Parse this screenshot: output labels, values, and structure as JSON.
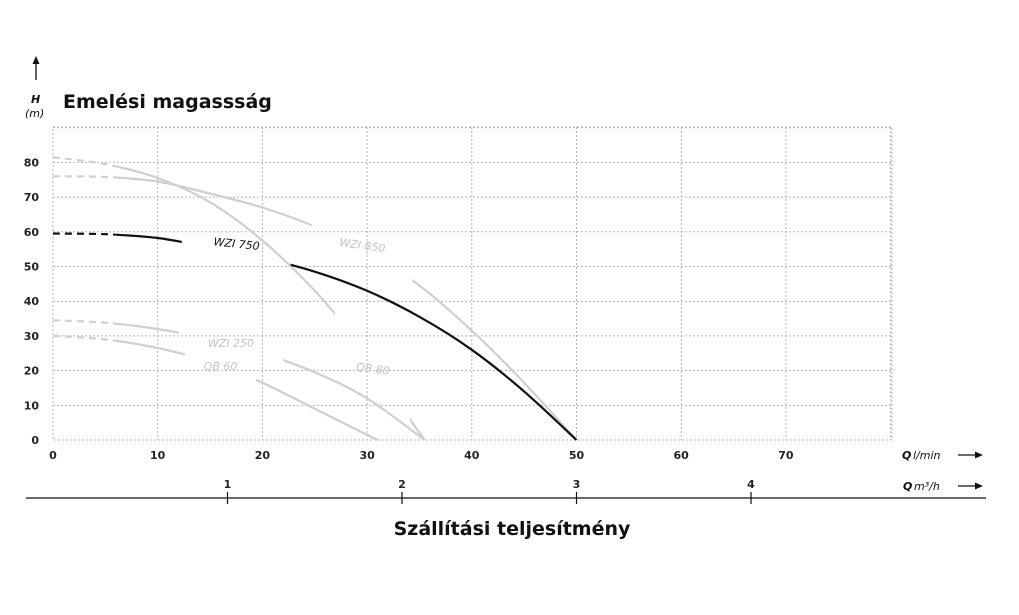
{
  "chart_data": {
    "type": "line",
    "title": "Emelési magassság",
    "xlabel": "Szállítási teljesítmény",
    "y_axis": {
      "symbol": "H",
      "unit": "(m)",
      "ticks": [
        "0",
        "10",
        "20",
        "30",
        "40",
        "50",
        "60",
        "70",
        "80"
      ],
      "ylim": [
        0,
        90
      ]
    },
    "x_axis_primary": {
      "symbol": "Q",
      "unit": "l/min",
      "ticks": [
        "0",
        "10",
        "20",
        "30",
        "40",
        "50",
        "60",
        "70"
      ],
      "xlim": [
        0,
        80
      ]
    },
    "x_axis_secondary": {
      "symbol": "Q",
      "unit": "m³/h",
      "ticks": [
        "1",
        "2",
        "3",
        "4"
      ],
      "values": [
        1,
        2,
        3,
        4
      ]
    },
    "grid": true,
    "series": [
      {
        "name": "WZI 750",
        "color": "#111111",
        "highlight": true,
        "x": [
          0,
          5,
          10,
          15,
          20,
          25,
          30,
          35,
          40,
          45,
          50
        ],
        "y": [
          59.5,
          59.3,
          58.2,
          55.5,
          52.5,
          48.5,
          43,
          35.5,
          26,
          14,
          0
        ]
      },
      {
        "name": "WZI 850",
        "color": "#cfcfcf",
        "x": [
          0,
          5,
          10,
          15,
          20,
          25,
          30,
          35,
          40,
          45,
          50
        ],
        "y": [
          76,
          75.8,
          74.5,
          71,
          67,
          61.5,
          54,
          44.5,
          31.5,
          16.5,
          0
        ]
      },
      {
        "name": "QB 80",
        "color": "#cfcfcf",
        "x": [
          0,
          5,
          10,
          15,
          20,
          25,
          28,
          31,
          35.5
        ],
        "y": [
          81.5,
          79.5,
          75.5,
          68.5,
          57.5,
          43,
          32,
          19,
          0
        ]
      },
      {
        "name": "WZI 250",
        "color": "#cfcfcf",
        "x": [
          0,
          5,
          10,
          15,
          20,
          25,
          30,
          35.5
        ],
        "y": [
          34.5,
          33.8,
          32,
          29,
          25,
          19.5,
          12,
          0
        ]
      },
      {
        "name": "QB 60",
        "color": "#cfcfcf",
        "x": [
          0,
          5,
          10,
          15,
          20,
          25,
          31
        ],
        "y": [
          30,
          29,
          26.5,
          22.5,
          16.5,
          9,
          0
        ]
      }
    ]
  }
}
